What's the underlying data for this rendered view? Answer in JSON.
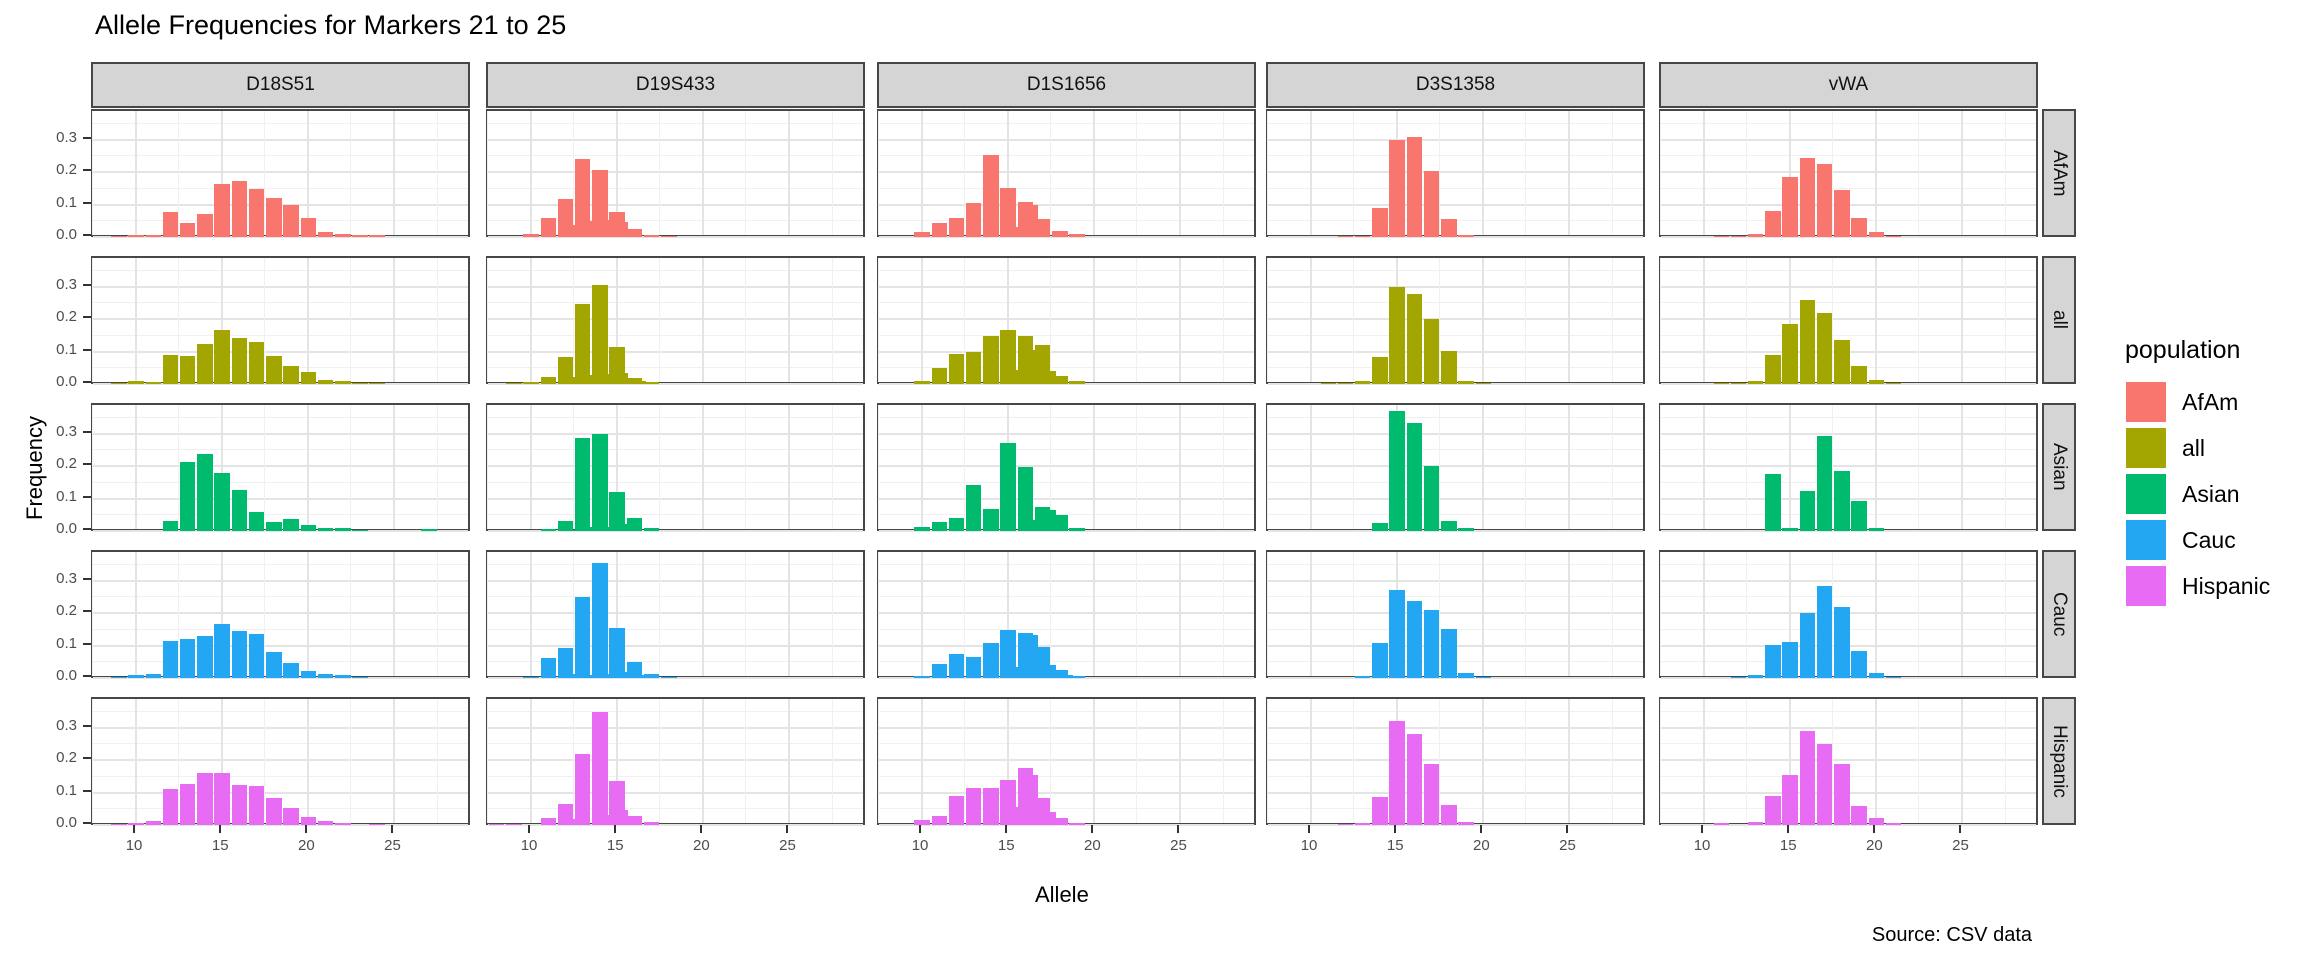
{
  "title": "Allele Frequencies for Markers 21 to 25",
  "caption": "Source: CSV data",
  "chart_data": {
    "type": "bar",
    "title": "Allele Frequencies for Markers 21 to 25",
    "xlabel": "Allele",
    "ylabel": "Frequency",
    "caption": "Source: CSV data",
    "x_domain": [
      7.5,
      29.5
    ],
    "x_ticks": [
      10,
      15,
      20,
      25
    ],
    "y_domain": [
      -0.006,
      0.39
    ],
    "y_ticks": [
      "0.0",
      "0.1",
      "0.2",
      "0.3"
    ],
    "grid": "on",
    "legend_position": "right",
    "col_facets": [
      "D18S51",
      "D19S433",
      "D1S1656",
      "D3S1358",
      "vWA"
    ],
    "row_facets": [
      "AfAm",
      "all",
      "Asian",
      "Cauc",
      "Hispanic"
    ],
    "legend": {
      "title": "population",
      "entries": [
        {
          "label": "AfAm",
          "color": "#F8766D"
        },
        {
          "label": "all",
          "color": "#A3A500"
        },
        {
          "label": "Asian",
          "color": "#00BA6E"
        },
        {
          "label": "Cauc",
          "color": "#24A7F2"
        },
        {
          "label": "Hispanic",
          "color": "#E76BF3"
        }
      ]
    },
    "series": {
      "AfAm": {
        "D18S51": {
          "alleles": [
            9,
            10,
            11,
            12,
            13,
            14,
            15,
            16,
            17,
            18,
            19,
            20,
            21,
            22,
            23,
            24
          ],
          "freqs": [
            0.003,
            0.005,
            0.005,
            0.076,
            0.042,
            0.07,
            0.165,
            0.172,
            0.15,
            0.12,
            0.1,
            0.06,
            0.015,
            0.01,
            0.007,
            0.005
          ]
        },
        "D19S433": {
          "alleles": [
            10,
            11,
            12,
            12.2,
            13,
            13.2,
            14,
            14.2,
            15,
            15.2,
            16,
            17,
            18
          ],
          "freqs": [
            0.009,
            0.058,
            0.117,
            0.036,
            0.24,
            0.051,
            0.207,
            0.054,
            0.078,
            0.048,
            0.024,
            0.007,
            0.003
          ]
        },
        "D1S1656": {
          "alleles": [
            10,
            11,
            12,
            13,
            14,
            15,
            15.3,
            16,
            16.3,
            17,
            18,
            19
          ],
          "freqs": [
            0.015,
            0.045,
            0.06,
            0.105,
            0.254,
            0.153,
            0.03,
            0.107,
            0.1,
            0.055,
            0.02,
            0.008
          ]
        },
        "D3S1358": {
          "alleles": [
            12,
            13,
            14,
            15,
            16,
            17,
            18,
            19
          ],
          "freqs": [
            0.004,
            0.004,
            0.09,
            0.3,
            0.31,
            0.205,
            0.055,
            0.006
          ]
        },
        "vWA": {
          "alleles": [
            11,
            12,
            13,
            14,
            15,
            16,
            17,
            18,
            19,
            20,
            21
          ],
          "freqs": [
            0.003,
            0.003,
            0.008,
            0.08,
            0.185,
            0.245,
            0.225,
            0.145,
            0.06,
            0.015,
            0.004
          ]
        }
      },
      "all": {
        "D18S51": {
          "alleles": [
            9,
            10,
            11,
            12,
            13,
            14,
            15,
            16,
            17,
            18,
            19,
            20,
            21,
            22,
            23,
            24
          ],
          "freqs": [
            0.003,
            0.008,
            0.006,
            0.091,
            0.087,
            0.125,
            0.166,
            0.144,
            0.13,
            0.086,
            0.055,
            0.036,
            0.014,
            0.009,
            0.004,
            0.002
          ]
        },
        "D19S433": {
          "alleles": [
            9,
            10,
            11,
            12,
            12.2,
            13,
            13.2,
            14,
            14.2,
            15,
            15.2,
            16,
            16.2,
            17
          ],
          "freqs": [
            0.003,
            0.006,
            0.022,
            0.085,
            0.022,
            0.247,
            0.027,
            0.307,
            0.03,
            0.115,
            0.033,
            0.018,
            0.008,
            0.005
          ]
        },
        "D1S1656": {
          "alleles": [
            10,
            11,
            12,
            13,
            14,
            15,
            15.3,
            16,
            16.3,
            17,
            17.3,
            18,
            19
          ],
          "freqs": [
            0.01,
            0.05,
            0.094,
            0.1,
            0.15,
            0.168,
            0.045,
            0.148,
            0.105,
            0.12,
            0.04,
            0.025,
            0.008
          ]
        },
        "D3S1358": {
          "alleles": [
            11,
            12,
            13,
            14,
            15,
            16,
            17,
            18,
            19,
            20
          ],
          "freqs": [
            0.003,
            0.004,
            0.008,
            0.085,
            0.3,
            0.28,
            0.2,
            0.102,
            0.01,
            0.003
          ]
        },
        "vWA": {
          "alleles": [
            11,
            12,
            13,
            14,
            15,
            16,
            17,
            18,
            19,
            20,
            21
          ],
          "freqs": [
            0.003,
            0.003,
            0.008,
            0.09,
            0.185,
            0.26,
            0.22,
            0.135,
            0.055,
            0.012,
            0.003
          ]
        }
      },
      "Asian": {
        "D18S51": {
          "alleles": [
            12,
            13,
            14,
            15,
            16,
            17,
            18,
            19,
            20,
            21,
            22,
            23,
            27
          ],
          "freqs": [
            0.032,
            0.215,
            0.237,
            0.18,
            0.127,
            0.06,
            0.027,
            0.038,
            0.018,
            0.01,
            0.008,
            0.003,
            0.006
          ]
        },
        "D19S433": {
          "alleles": [
            11,
            12,
            12.2,
            13,
            13.2,
            14,
            14.2,
            15,
            15.2,
            16,
            17
          ],
          "freqs": [
            0.005,
            0.03,
            0.004,
            0.287,
            0.012,
            0.3,
            0.012,
            0.12,
            0.023,
            0.04,
            0.01
          ]
        },
        "D1S1656": {
          "alleles": [
            10,
            11,
            12,
            13,
            14,
            15,
            16,
            16.3,
            17,
            17.3,
            18,
            19
          ],
          "freqs": [
            0.012,
            0.028,
            0.041,
            0.143,
            0.068,
            0.273,
            0.197,
            0.035,
            0.075,
            0.065,
            0.05,
            0.01
          ]
        },
        "D3S1358": {
          "alleles": [
            14,
            15,
            16,
            17,
            18,
            19
          ],
          "freqs": [
            0.025,
            0.37,
            0.333,
            0.2,
            0.03,
            0.008
          ]
        },
        "vWA": {
          "alleles": [
            14,
            15,
            16,
            17,
            18,
            19,
            20
          ],
          "freqs": [
            0.178,
            0.01,
            0.123,
            0.293,
            0.187,
            0.092,
            0.01
          ]
        }
      },
      "Cauc": {
        "D18S51": {
          "alleles": [
            9,
            10,
            11,
            12,
            13,
            14,
            15,
            16,
            17,
            18,
            19,
            20,
            21,
            22,
            23
          ],
          "freqs": [
            0.004,
            0.009,
            0.012,
            0.115,
            0.121,
            0.131,
            0.168,
            0.146,
            0.136,
            0.08,
            0.046,
            0.021,
            0.012,
            0.008,
            0.004
          ]
        },
        "D19S433": {
          "alleles": [
            10,
            11,
            12,
            12.2,
            13,
            13.2,
            14,
            14.2,
            15,
            15.2,
            16,
            16.2,
            17,
            18
          ],
          "freqs": [
            0.004,
            0.063,
            0.092,
            0.012,
            0.252,
            0.011,
            0.357,
            0.014,
            0.155,
            0.02,
            0.05,
            0.01,
            0.012,
            0.004
          ]
        },
        "D1S1656": {
          "alleles": [
            10,
            11,
            12,
            13,
            14,
            15,
            15.3,
            16,
            16.3,
            17,
            17.3,
            18,
            18.3,
            19
          ],
          "freqs": [
            0.005,
            0.045,
            0.073,
            0.065,
            0.11,
            0.148,
            0.035,
            0.139,
            0.134,
            0.097,
            0.04,
            0.025,
            0.01,
            0.005
          ]
        },
        "D3S1358": {
          "alleles": [
            13,
            14,
            15,
            16,
            17,
            18,
            19,
            20
          ],
          "freqs": [
            0.005,
            0.109,
            0.272,
            0.238,
            0.211,
            0.152,
            0.015,
            0.004
          ]
        },
        "vWA": {
          "alleles": [
            12,
            13,
            14,
            15,
            16,
            17,
            18,
            19,
            20,
            21
          ],
          "freqs": [
            0.004,
            0.008,
            0.103,
            0.111,
            0.202,
            0.285,
            0.22,
            0.085,
            0.017,
            0.004
          ]
        }
      },
      "Hispanic": {
        "D18S51": {
          "alleles": [
            9,
            10,
            11,
            12,
            13,
            14,
            15,
            16,
            17,
            18,
            19,
            20,
            21,
            22,
            24
          ],
          "freqs": [
            0.004,
            0.006,
            0.014,
            0.113,
            0.126,
            0.161,
            0.161,
            0.124,
            0.122,
            0.083,
            0.054,
            0.024,
            0.012,
            0.006,
            0.003
          ]
        },
        "D19S433": {
          "alleles": [
            8,
            9,
            11,
            12,
            12.2,
            13,
            14,
            14.2,
            15,
            15.2,
            16,
            17
          ],
          "freqs": [
            0.003,
            0.004,
            0.021,
            0.065,
            0.018,
            0.22,
            0.35,
            0.03,
            0.136,
            0.046,
            0.028,
            0.01
          ]
        },
        "D1S1656": {
          "alleles": [
            10,
            11,
            12,
            13,
            14,
            15,
            15.3,
            16,
            16.3,
            17,
            17.3,
            18,
            19
          ],
          "freqs": [
            0.015,
            0.028,
            0.09,
            0.114,
            0.116,
            0.138,
            0.055,
            0.175,
            0.155,
            0.083,
            0.04,
            0.022,
            0.006
          ]
        },
        "D3S1358": {
          "alleles": [
            12,
            13,
            14,
            15,
            16,
            17,
            18,
            19
          ],
          "freqs": [
            0.004,
            0.006,
            0.088,
            0.321,
            0.283,
            0.188,
            0.063,
            0.01
          ]
        },
        "vWA": {
          "alleles": [
            11,
            13,
            14,
            15,
            16,
            17,
            18,
            19,
            20,
            21
          ],
          "freqs": [
            0.005,
            0.008,
            0.09,
            0.155,
            0.29,
            0.252,
            0.19,
            0.06,
            0.023,
            0.005
          ]
        }
      }
    }
  }
}
